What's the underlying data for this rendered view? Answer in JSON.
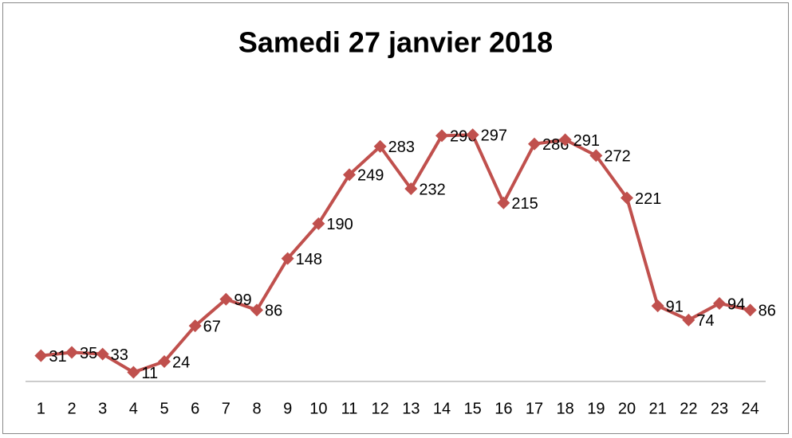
{
  "chart_data": {
    "type": "line",
    "title": "Samedi 27 janvier 2018",
    "categories": [
      "1",
      "2",
      "3",
      "4",
      "5",
      "6",
      "7",
      "8",
      "9",
      "10",
      "11",
      "12",
      "13",
      "14",
      "15",
      "16",
      "17",
      "18",
      "19",
      "20",
      "21",
      "22",
      "23",
      "24"
    ],
    "series": [
      {
        "name": null,
        "color": "#c0504d",
        "values": [
          31,
          35,
          33,
          11,
          24,
          67,
          99,
          86,
          148,
          190,
          249,
          283,
          232,
          296,
          297,
          215,
          286,
          291,
          272,
          221,
          91,
          74,
          94,
          86
        ]
      }
    ],
    "ylim": [
      0,
      350
    ],
    "grid": false
  }
}
